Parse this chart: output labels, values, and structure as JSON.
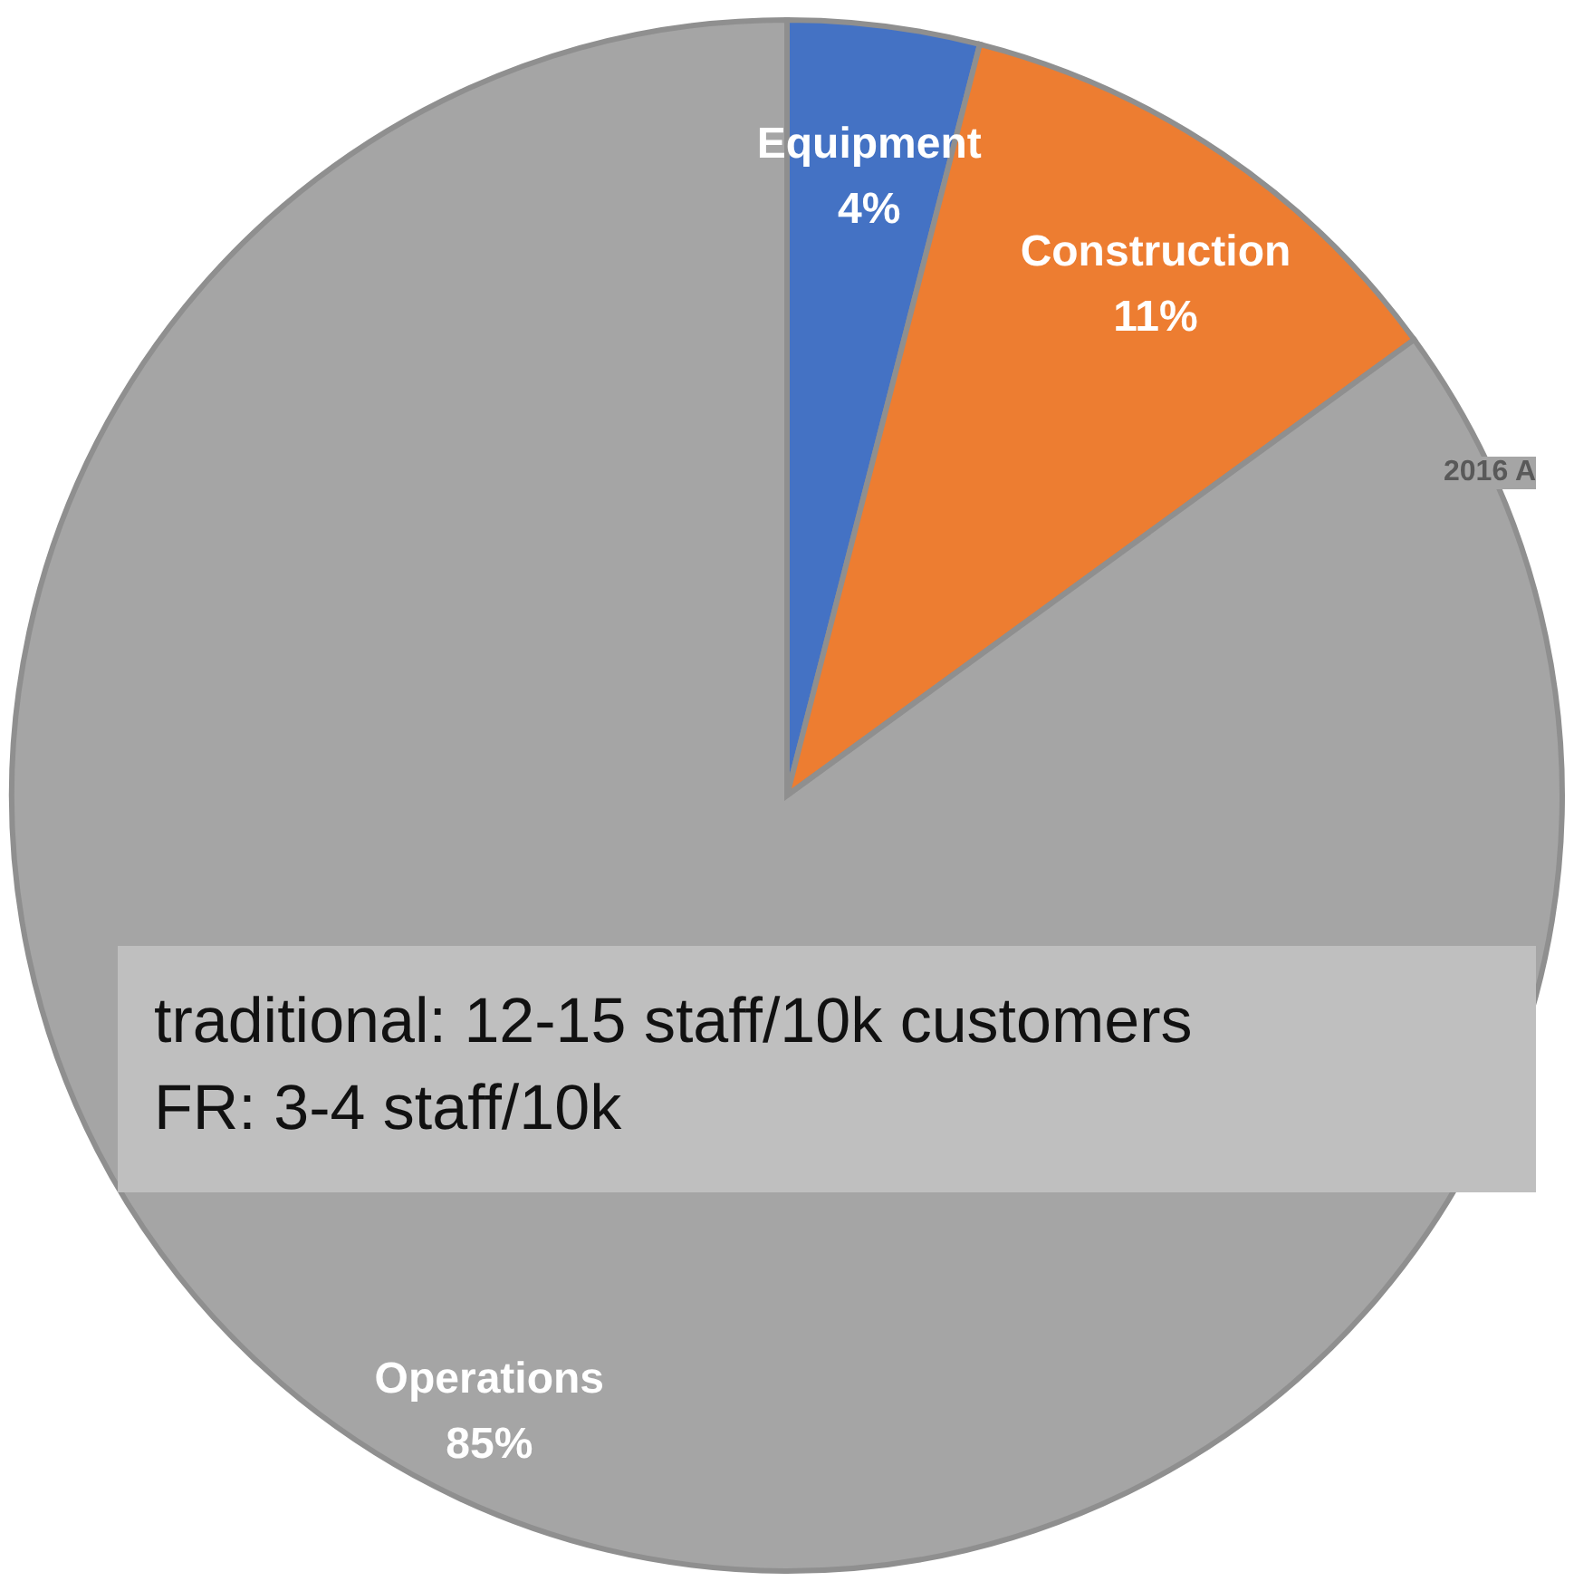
{
  "chart_data": {
    "type": "pie",
    "categories": [
      "Equipment",
      "Construction",
      "Operations"
    ],
    "values": [
      4,
      11,
      85
    ],
    "value_labels": [
      "4%",
      "11%",
      "85%"
    ],
    "colors": [
      "#4472c4",
      "#ed7d31",
      "#a5a5a5"
    ],
    "annotations": [
      "traditional: 12-15 staff/10k customers",
      "FR: 3-4 staff/10k",
      "2016 A"
    ]
  }
}
